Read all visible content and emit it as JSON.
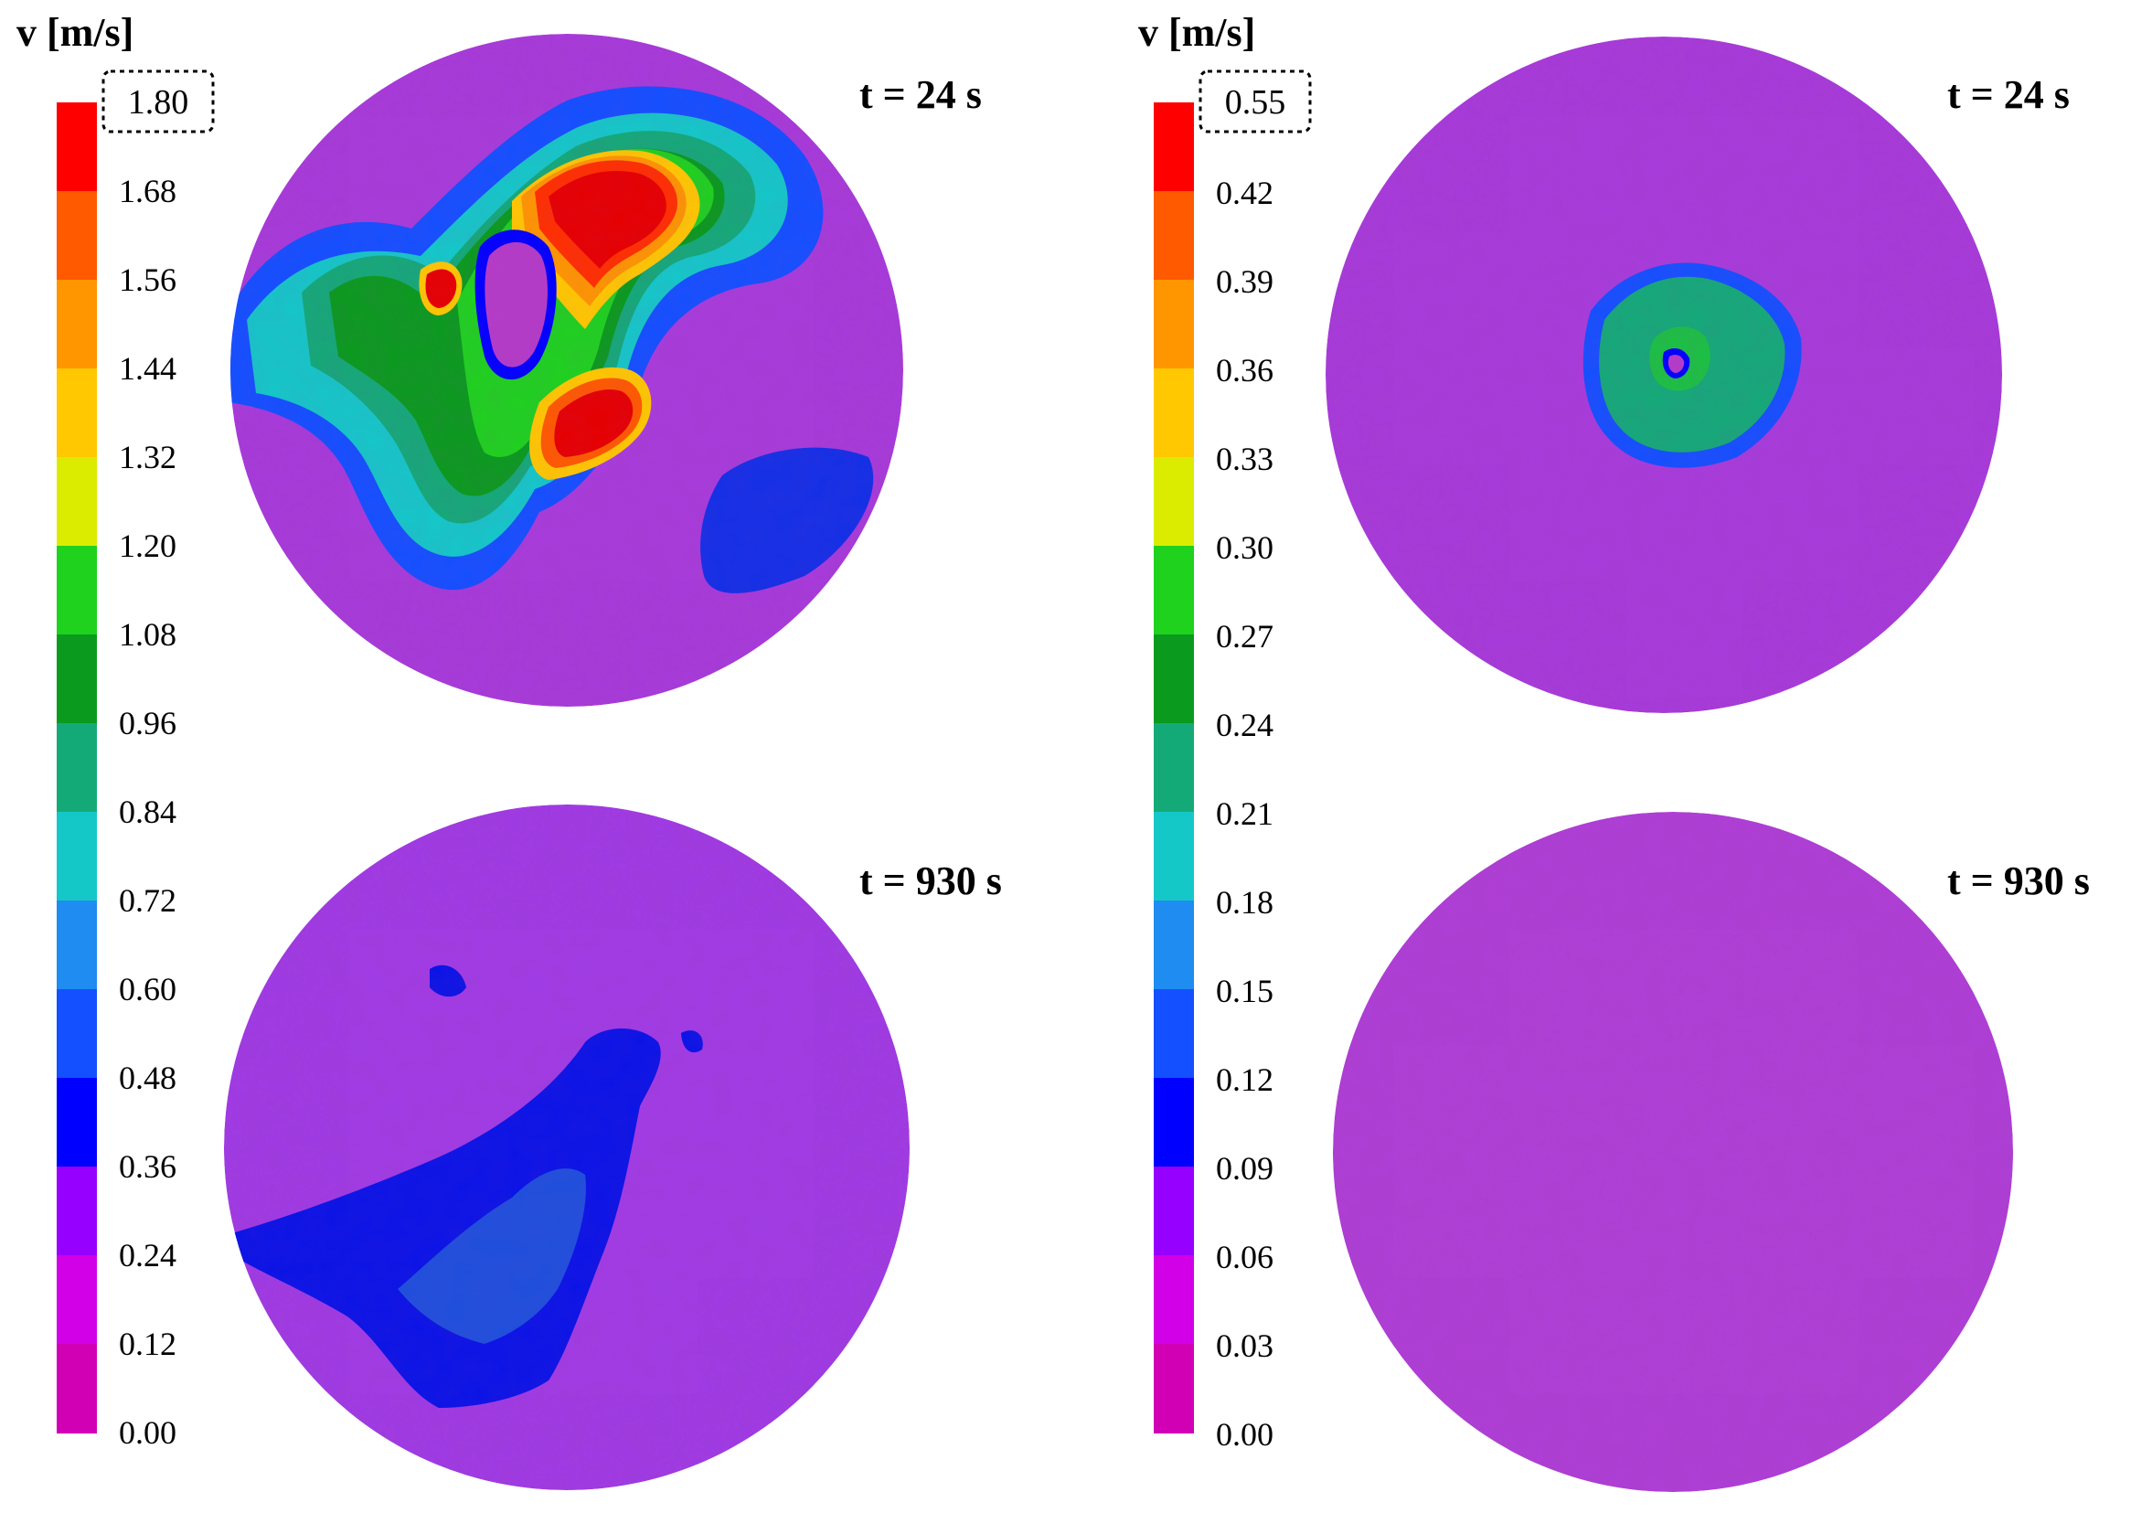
{
  "panels": [
    {
      "unit_label": "v [m/s]",
      "max_value": "1.80",
      "ticks": [
        "1.68",
        "1.56",
        "1.44",
        "1.32",
        "1.20",
        "1.08",
        "0.96",
        "0.84",
        "0.72",
        "0.60",
        "0.48",
        "0.36",
        "0.24",
        "0.12",
        "0.00"
      ],
      "time_top": "t = 24 s",
      "time_bottom": "t = 930 s"
    },
    {
      "unit_label": "v [m/s]",
      "max_value": "0.55",
      "ticks": [
        "0.42",
        "0.39",
        "0.36",
        "0.33",
        "0.30",
        "0.27",
        "0.24",
        "0.21",
        "0.18",
        "0.15",
        "0.12",
        "0.09",
        "0.06",
        "0.03",
        "0.00"
      ],
      "time_top": "t = 24 s",
      "time_bottom": "t = 930 s"
    }
  ],
  "colormap": [
    "#ff0000",
    "#ff5a00",
    "#ff9600",
    "#ffc800",
    "#dcec00",
    "#1ed21e",
    "#0a9b1e",
    "#14aa78",
    "#14c8c8",
    "#1e8cf0",
    "#1450ff",
    "#0000ff",
    "#9600ff",
    "#d200e6",
    "#d200b4"
  ],
  "field_base_color": "#a83cdc"
}
